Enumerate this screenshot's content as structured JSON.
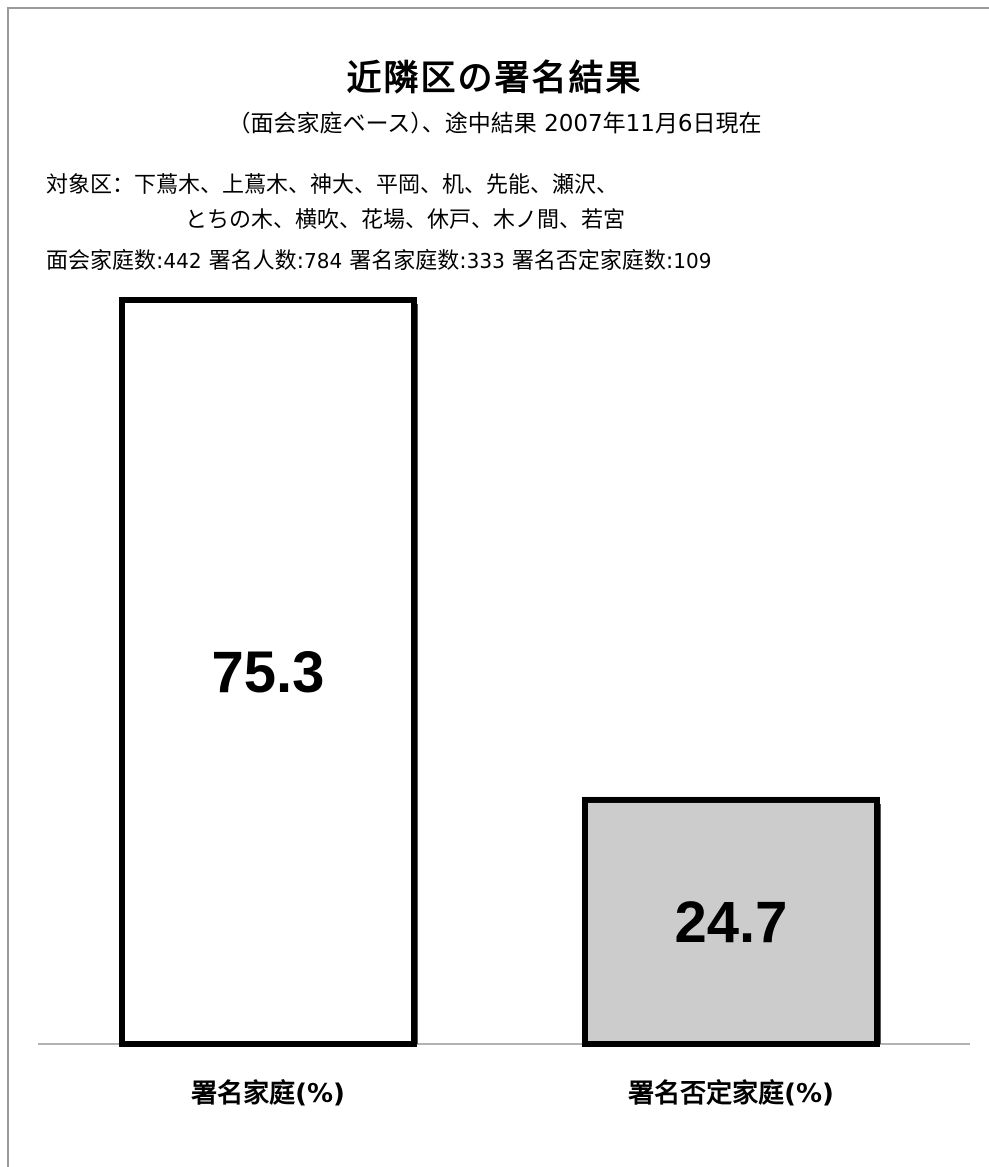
{
  "title": "近隣区の署名結果",
  "subtitle": "（面会家庭ベース）、途中結果 2007年11月6日現在",
  "info": {
    "districts_label": "対象区：",
    "districts_line1": "下蔦木、上蔦木、神大、平岡、机、先能、瀬沢、",
    "districts_line2": "とちの木、横吹、花場、休戸、木ノ間、若宮",
    "counts": [
      {
        "label": "面会家庭数:",
        "value": "442"
      },
      {
        "label": "署名人数:",
        "value": "784"
      },
      {
        "label": "署名家庭数:",
        "value": "333"
      },
      {
        "label": "署名否定家庭数:",
        "value": "109"
      }
    ]
  },
  "chart_data": {
    "type": "bar",
    "categories": [
      "署名家庭(%)",
      "署名否定家庭(%)"
    ],
    "values": [
      75.3,
      24.7
    ],
    "colors": [
      "#ffffff",
      "#cccccc"
    ],
    "ylim": [
      0,
      100
    ],
    "xlabel": "",
    "ylabel": "",
    "grid": false
  }
}
